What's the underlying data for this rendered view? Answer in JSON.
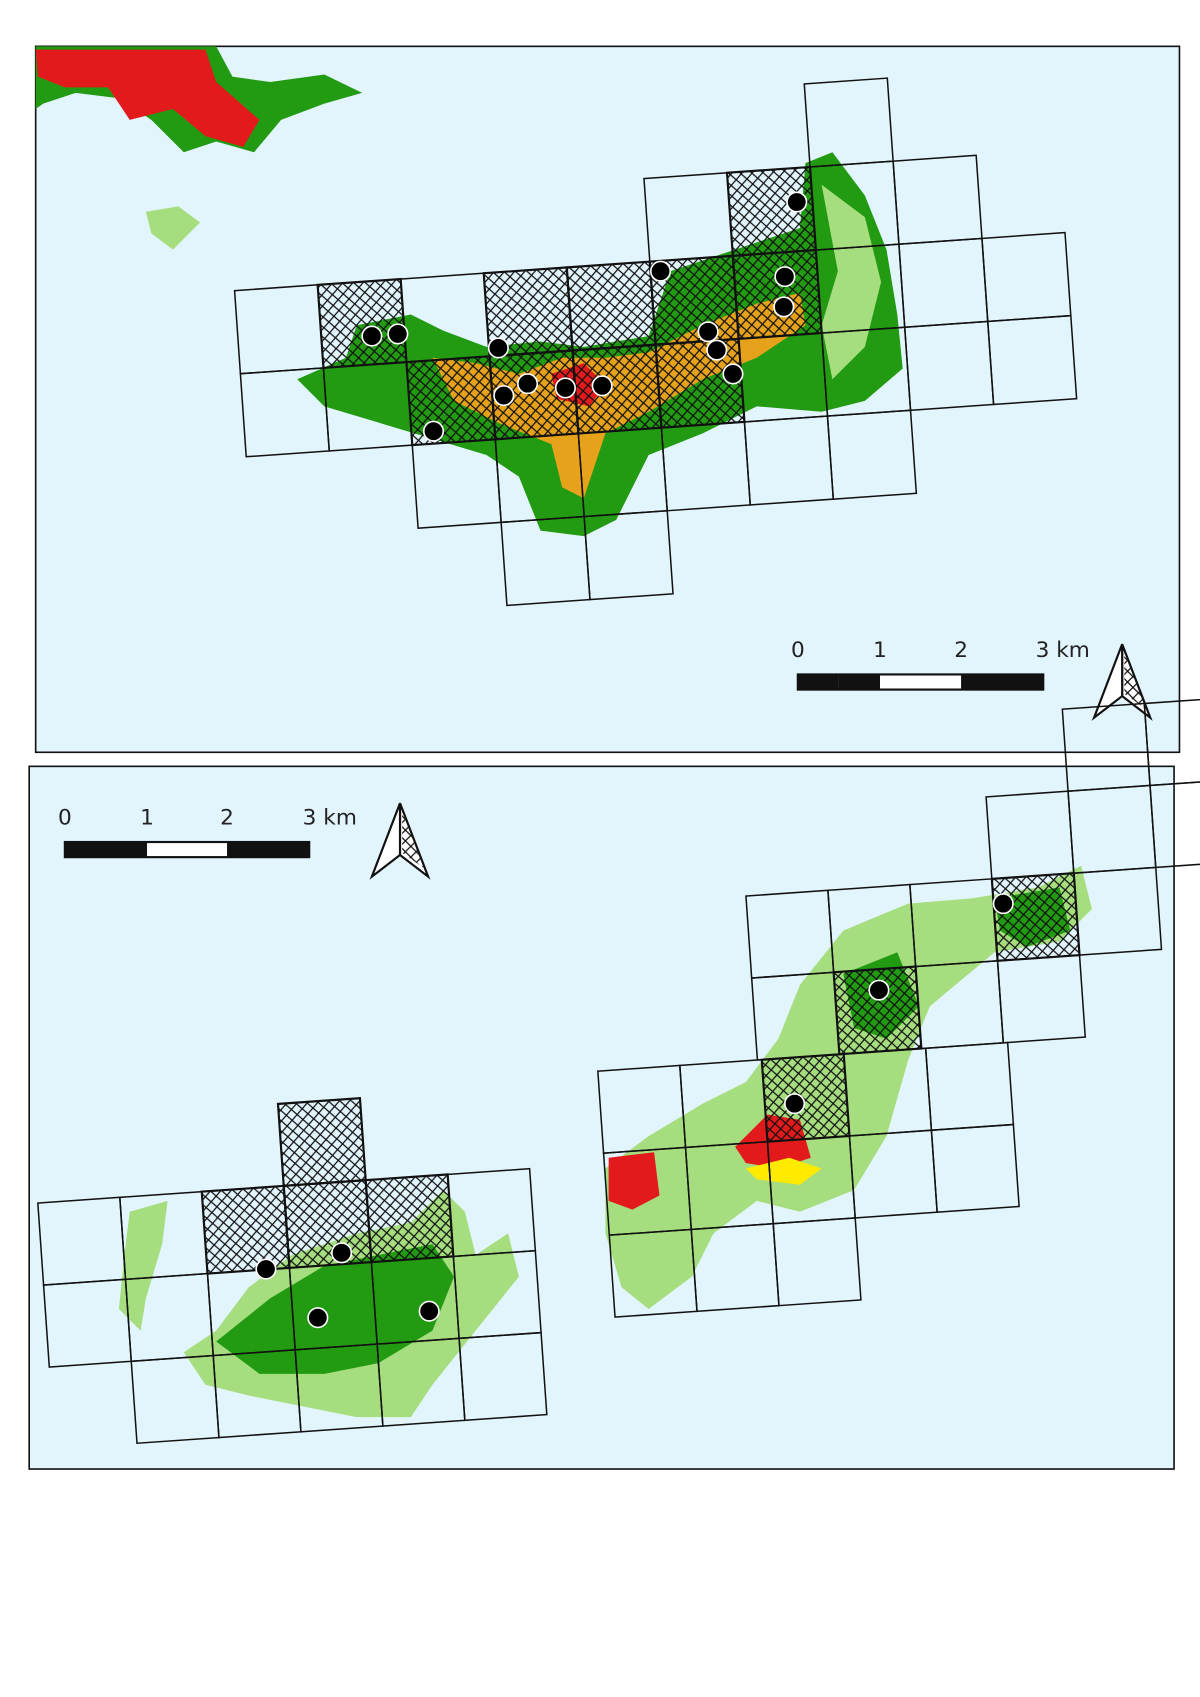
{
  "maps": [
    {
      "scale_labels": [
        "0",
        "1",
        "2",
        "3 km"
      ]
    },
    {
      "scale_labels": [
        "0",
        "1",
        "2",
        "3 km"
      ]
    }
  ]
}
